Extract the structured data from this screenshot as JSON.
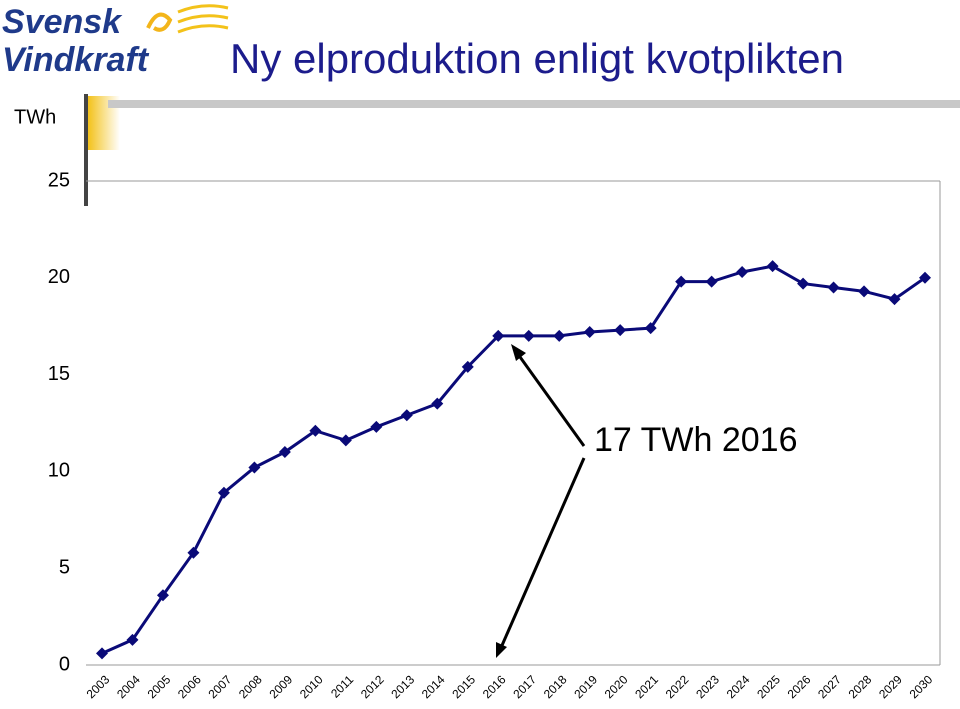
{
  "logo": {
    "line1": "Svensk",
    "line2": "Vindkraft"
  },
  "chart_data": {
    "type": "line",
    "title": "Ny elproduktion enligt kvotplikten",
    "y_label": "TWh",
    "annotation": "17 TWh 2016",
    "categories": [
      "2003",
      "2004",
      "2005",
      "2006",
      "2007",
      "2008",
      "2009",
      "2010",
      "2011",
      "2012",
      "2013",
      "2014",
      "2015",
      "2016",
      "2017",
      "2018",
      "2019",
      "2020",
      "2021",
      "2022",
      "2023",
      "2024",
      "2025",
      "2026",
      "2027",
      "2028",
      "2029",
      "2030"
    ],
    "values": [
      0.6,
      1.3,
      3.6,
      5.8,
      8.9,
      10.2,
      11.0,
      12.1,
      11.6,
      12.3,
      12.9,
      13.5,
      15.4,
      17.0,
      17.0,
      17.0,
      17.2,
      17.3,
      17.4,
      19.8,
      19.8,
      20.3,
      20.6,
      19.7,
      19.5,
      19.3,
      18.9,
      20.0
    ],
    "color": "#0a0a78",
    "ylim": [
      0,
      25
    ],
    "yticks": [
      0,
      5,
      10,
      15,
      20,
      25
    ]
  }
}
